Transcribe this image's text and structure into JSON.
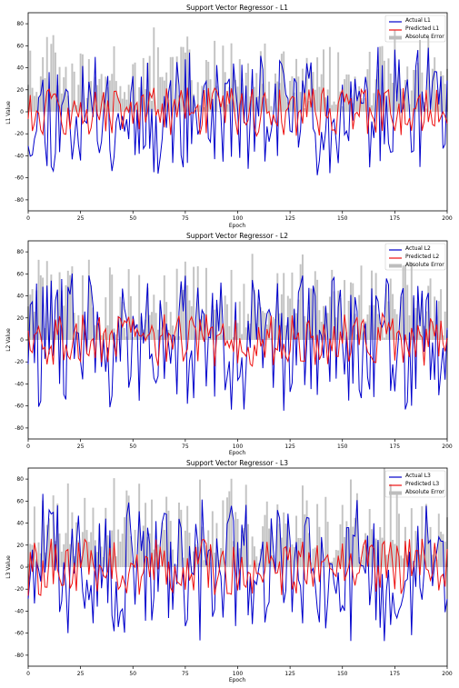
{
  "chart_data": [
    {
      "type": "line",
      "title": "Support Vector Regressor - L1",
      "xlabel": "Epoch",
      "ylabel": "L1 Value",
      "xlim": [
        0,
        200
      ],
      "ylim": [
        -90,
        90
      ],
      "xticks": [
        0,
        25,
        50,
        75,
        100,
        125,
        150,
        175,
        200
      ],
      "yticks": [
        -80,
        -60,
        -40,
        -20,
        0,
        20,
        40,
        60,
        80
      ],
      "legend_position": "upper right",
      "legend": [
        "Actual L1",
        "Predicted L1",
        "Absolute Error"
      ],
      "colors": {
        "actual": "#0000cc",
        "predicted": "#ee1111",
        "error": "#bdbdbd"
      },
      "seed": 11,
      "actual_amplitude": 52,
      "predicted_amplitude": 22,
      "n_points": 201
    },
    {
      "type": "line",
      "title": "Support Vector Regressor - L2",
      "xlabel": "Epoch",
      "ylabel": "L2 Value",
      "xlim": [
        0,
        200
      ],
      "ylim": [
        -90,
        90
      ],
      "xticks": [
        0,
        25,
        50,
        75,
        100,
        125,
        150,
        175,
        200
      ],
      "yticks": [
        -80,
        -60,
        -40,
        -20,
        0,
        20,
        40,
        60,
        80
      ],
      "legend_position": "upper right",
      "legend": [
        "Actual L2",
        "Predicted L2",
        "Absolute Error"
      ],
      "colors": {
        "actual": "#0000cc",
        "predicted": "#ee1111",
        "error": "#bdbdbd"
      },
      "seed": 29,
      "actual_amplitude": 58,
      "predicted_amplitude": 24,
      "n_points": 201
    },
    {
      "type": "line",
      "title": "Support Vector Regressor - L3",
      "xlabel": "Epoch",
      "ylabel": "L3 Value",
      "xlim": [
        0,
        200
      ],
      "ylim": [
        -90,
        90
      ],
      "xticks": [
        0,
        25,
        50,
        75,
        100,
        125,
        150,
        175,
        200
      ],
      "yticks": [
        -80,
        -60,
        -40,
        -20,
        0,
        20,
        40,
        60,
        80
      ],
      "legend_position": "upper right",
      "legend": [
        "Actual L3",
        "Predicted L3",
        "Absolute Error"
      ],
      "colors": {
        "actual": "#0000cc",
        "predicted": "#ee1111",
        "error": "#bdbdbd"
      },
      "seed": 47,
      "actual_amplitude": 60,
      "predicted_amplitude": 26,
      "n_points": 201
    }
  ]
}
